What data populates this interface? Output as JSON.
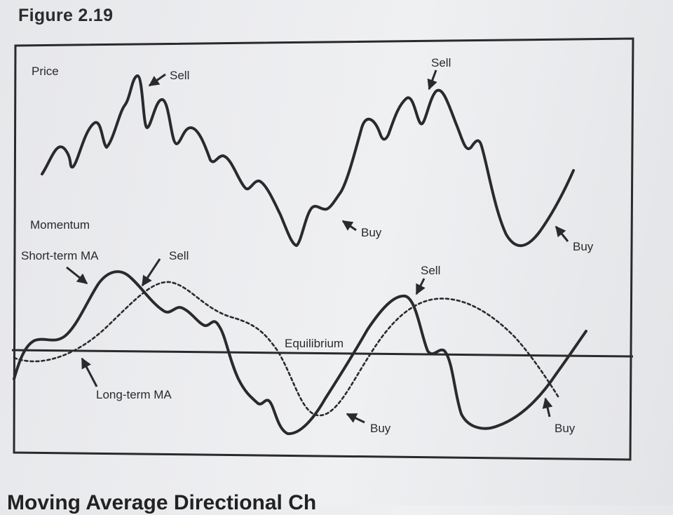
{
  "figure": {
    "title": "Figure 2.19",
    "bottom_heading": "Moving Average Directional Ch"
  },
  "price_panel": {
    "label": "Price",
    "annotations": {
      "sell_1": "Sell",
      "sell_2": "Sell",
      "buy_1": "Buy",
      "buy_2": "Buy"
    }
  },
  "momentum_panel": {
    "label": "Momentum",
    "short_ma_label": "Short-term MA",
    "long_ma_label": "Long-term MA",
    "equilibrium_label": "Equilibrium",
    "annotations": {
      "sell_1": "Sell",
      "sell_2": "Sell",
      "buy_1": "Buy",
      "buy_2": "Buy"
    }
  },
  "colors": {
    "ink": "#2a2a2d",
    "page": "#eceef0"
  }
}
